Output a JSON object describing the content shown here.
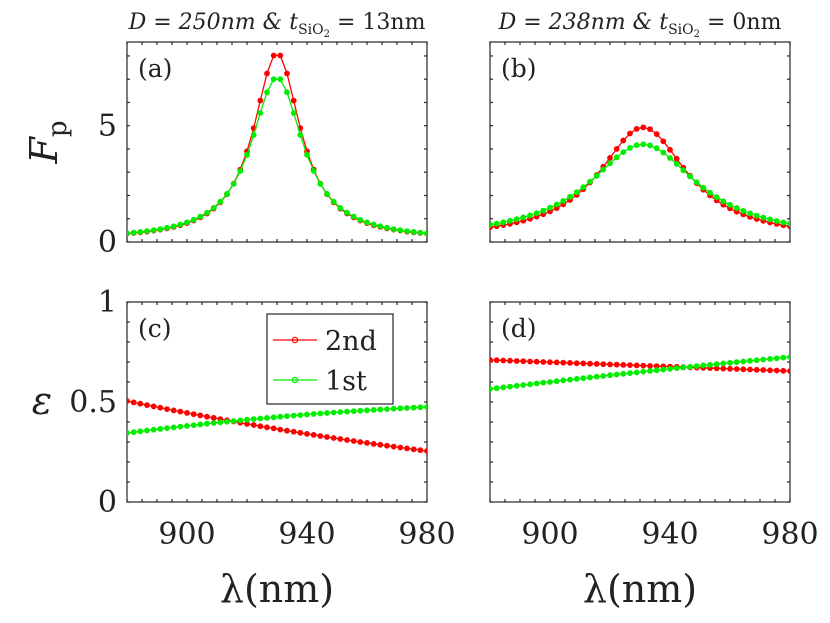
{
  "chart_data": [
    {
      "type": "line",
      "panel_label": "(a)",
      "title": "D = 250nm & t_SiO2 = 13nm",
      "title_parts": {
        "lhs": "D = 250nm & t",
        "sub": "SiO",
        "sub2": "2",
        "rhs": " = 13nm"
      },
      "ylabel": "F_p",
      "ylabel_parts": {
        "main": "F",
        "sub": "p"
      },
      "xlabel": "",
      "xlim": [
        880,
        980
      ],
      "ylim": [
        0,
        8.6
      ],
      "xticks": [],
      "yticks": [
        "0",
        "5"
      ],
      "ytick_values": [
        0,
        5
      ],
      "grid": false,
      "series": [
        {
          "name": "2nd",
          "color": "#ff0000",
          "curve": {
            "kind": "lorentz",
            "base": 0.0,
            "peak": 8.05,
            "center": 930,
            "gamma": 9.5,
            "offset": 0.08
          }
        },
        {
          "name": "1st",
          "color": "#00ee00",
          "curve": {
            "kind": "lorentz",
            "base": 0.0,
            "peak": 7.0,
            "center": 930,
            "gamma": 10.5,
            "offset": 0.08
          }
        }
      ]
    },
    {
      "type": "line",
      "panel_label": "(b)",
      "title": "D = 238nm & t_SiO2 = 0nm",
      "title_parts": {
        "lhs": "D = 238nm & t",
        "sub": "SiO",
        "sub2": "2",
        "rhs": " = 0nm"
      },
      "ylabel": "",
      "xlabel": "",
      "xlim": [
        880,
        980
      ],
      "ylim": [
        0,
        8.6
      ],
      "xticks": [],
      "yticks": [],
      "grid": false,
      "series": [
        {
          "name": "2nd",
          "color": "#ff0000",
          "curve": {
            "kind": "lorentz",
            "base": 0.0,
            "peak": 4.83,
            "center": 931,
            "gamma": 18.0,
            "offset": 0.1
          }
        },
        {
          "name": "1st",
          "color": "#00ee00",
          "curve": {
            "kind": "lorentz",
            "base": 0.0,
            "peak": 4.1,
            "center": 931,
            "gamma": 22.0,
            "offset": 0.1
          }
        }
      ]
    },
    {
      "type": "line",
      "panel_label": "(c)",
      "title": "",
      "ylabel": "ε",
      "xlabel": "λ(nm)",
      "xlim": [
        880,
        980
      ],
      "ylim": [
        0,
        1
      ],
      "xticks": [
        "900",
        "940",
        "980"
      ],
      "xtick_values": [
        900,
        940,
        980
      ],
      "yticks": [
        "0",
        "0.5",
        "1"
      ],
      "ytick_values": [
        0,
        0.5,
        1
      ],
      "grid": false,
      "legend": {
        "position": "top-right",
        "entries": [
          "2nd",
          "1st"
        ]
      },
      "series": [
        {
          "name": "2nd",
          "color": "#ff0000",
          "curve": {
            "kind": "quad",
            "x0": 880,
            "y0": 0.505,
            "x1": 980,
            "y1": 0.255,
            "bend": -0.06
          }
        },
        {
          "name": "1st",
          "color": "#00ee00",
          "curve": {
            "kind": "quad",
            "x0": 880,
            "y0": 0.345,
            "x1": 980,
            "y1": 0.475,
            "bend": 0.06
          }
        }
      ]
    },
    {
      "type": "line",
      "panel_label": "(d)",
      "title": "",
      "ylabel": "",
      "xlabel": "λ(nm)",
      "xlim": [
        880,
        980
      ],
      "ylim": [
        0,
        1
      ],
      "xticks": [
        "900",
        "940",
        "980"
      ],
      "xtick_values": [
        900,
        940,
        980
      ],
      "yticks": [],
      "grid": false,
      "series": [
        {
          "name": "2nd",
          "color": "#ff0000",
          "curve": {
            "kind": "quad",
            "x0": 880,
            "y0": 0.71,
            "x1": 980,
            "y1": 0.655,
            "bend": 0.0
          }
        },
        {
          "name": "1st",
          "color": "#00ee00",
          "curve": {
            "kind": "quad",
            "x0": 880,
            "y0": 0.565,
            "x1": 980,
            "y1": 0.725,
            "bend": 0.02
          }
        }
      ]
    }
  ]
}
